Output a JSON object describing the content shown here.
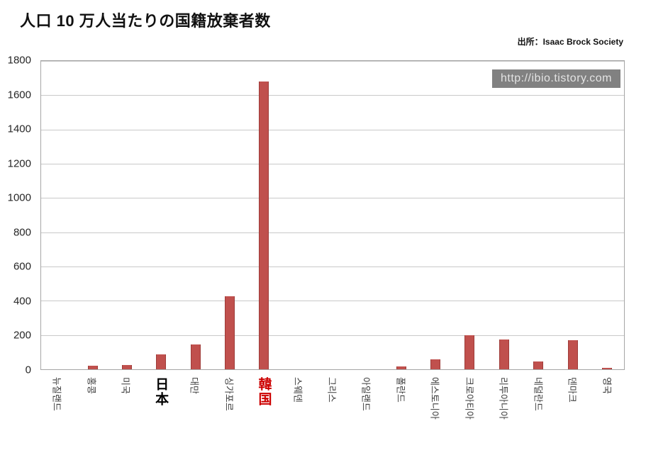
{
  "page": {
    "title": "人口 10 万人当たりの国籍放棄者数",
    "source": "出所：Isaac Brock Society",
    "watermark": "http://ibio.tistory.com"
  },
  "chart_data": {
    "type": "bar",
    "title": "人口 10 万人当たりの国籍放棄者数",
    "categories": [
      "뉴질랜드",
      "홍콩",
      "미국",
      "日本",
      "대만",
      "싱가포르",
      "韓国",
      "스웨덴",
      "그리스",
      "아일랜드",
      "폴란드",
      "에스토니아",
      "크로아티아",
      "리투아니아",
      "네덜란드",
      "덴마크",
      "영국"
    ],
    "category_styles": [
      "ko",
      "ko",
      "ko",
      "ja",
      "ko",
      "ko",
      "ja-red",
      "ko",
      "ko",
      "ko",
      "ko",
      "ko",
      "ko",
      "ko",
      "ko",
      "ko",
      "ko"
    ],
    "values": [
      0,
      20,
      25,
      85,
      145,
      425,
      1680,
      0,
      0,
      0,
      15,
      60,
      200,
      175,
      45,
      170,
      10
    ],
    "xlabel": "",
    "ylabel": "",
    "ylim": [
      0,
      1800
    ],
    "ytick_step": 200,
    "bar_color": "#c0504d",
    "grid": true,
    "legend_position": "none"
  }
}
